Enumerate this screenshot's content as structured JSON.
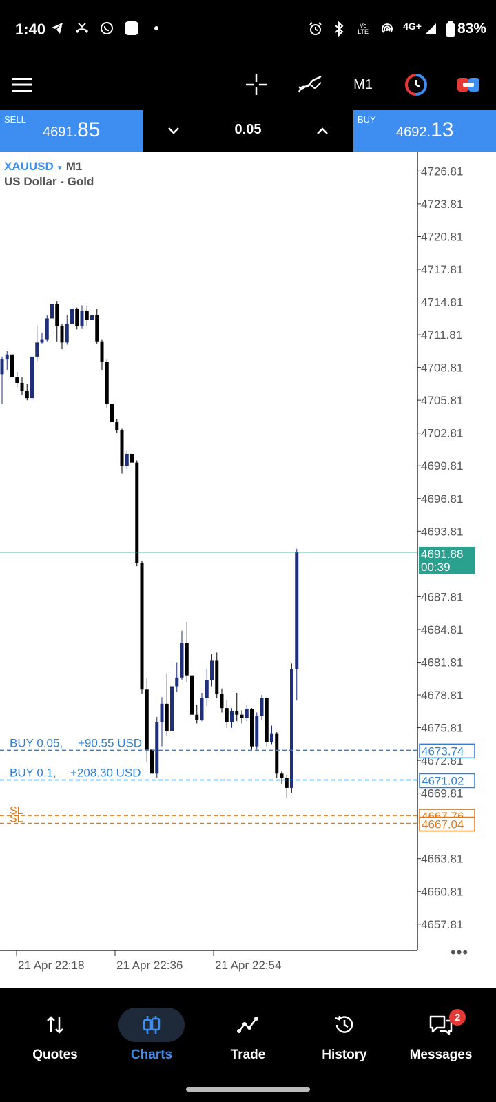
{
  "status_bar": {
    "time": "1:40",
    "battery": "83%",
    "network": "4G+",
    "volte": "Vo LTE"
  },
  "toolbar": {
    "timeframe": "M1"
  },
  "trade_panel": {
    "sell_label": "SELL",
    "sell_price_small": "4691.",
    "sell_price_big": "85",
    "buy_label": "BUY",
    "buy_price_small": "4692.",
    "buy_price_big": "13",
    "volume": "0.05"
  },
  "chart": {
    "symbol": "XAUUSD",
    "timeframe": "M1",
    "description": "US Dollar - Gold",
    "y_ticks": [
      "4726.81",
      "4723.81",
      "4720.81",
      "4717.81",
      "4714.81",
      "4711.81",
      "4708.81",
      "4705.81",
      "4702.81",
      "4699.81",
      "4696.81",
      "4693.81",
      "4687.81",
      "4684.81",
      "4681.81",
      "4678.81",
      "4675.81",
      "4672.81",
      "4669.81",
      "4663.81",
      "4660.81",
      "4657.81"
    ],
    "current_price": "4691.88",
    "countdown": "00:39",
    "x_ticks": [
      "21 Apr 22:18",
      "21 Apr 22:36",
      "21 Apr 22:54"
    ],
    "positions": [
      {
        "label": "BUY 0.05,",
        "profit": "+90.55 USD",
        "price": "4673.74",
        "price_value": 4673.74
      },
      {
        "label": "BUY 0.1,",
        "profit": "+208.30 USD",
        "price": "4671.02",
        "price_value": 4671.02
      }
    ],
    "stop_losses": [
      {
        "label": "SL",
        "price": "4667.76",
        "price_value": 4667.76
      },
      {
        "label": "SL",
        "price": "4667.04",
        "price_value": 4667.04
      }
    ],
    "colors": {
      "bull": "#1f2f7a",
      "bear": "#000000",
      "position_line": "#2f7fd6",
      "sl_line": "#e07a1c",
      "price_line": "#2aa18f",
      "price_tag_bg": "#2aa18f"
    }
  },
  "chart_data": {
    "type": "candlestick",
    "symbol": "XAUUSD",
    "timeframe": "M1",
    "ylim": [
      4655.4,
      4728.6
    ],
    "candles": [
      {
        "o": 4708.2,
        "h": 4709.8,
        "l": 4705.5,
        "c": 4709.6
      },
      {
        "o": 4709.6,
        "h": 4710.3,
        "l": 4708.6,
        "c": 4710.0
      },
      {
        "o": 4710.0,
        "h": 4710.1,
        "l": 4707.5,
        "c": 4707.9
      },
      {
        "o": 4707.9,
        "h": 4708.4,
        "l": 4707.0,
        "c": 4707.4
      },
      {
        "o": 4707.4,
        "h": 4707.9,
        "l": 4706.3,
        "c": 4706.7
      },
      {
        "o": 4706.7,
        "h": 4707.3,
        "l": 4705.8,
        "c": 4706.0
      },
      {
        "o": 4706.0,
        "h": 4710.1,
        "l": 4705.7,
        "c": 4709.8
      },
      {
        "o": 4709.8,
        "h": 4712.6,
        "l": 4709.4,
        "c": 4711.1
      },
      {
        "o": 4711.1,
        "h": 4712.0,
        "l": 4711.0,
        "c": 4711.4
      },
      {
        "o": 4711.4,
        "h": 4713.6,
        "l": 4711.2,
        "c": 4713.3
      },
      {
        "o": 4713.3,
        "h": 4715.1,
        "l": 4712.0,
        "c": 4714.6
      },
      {
        "o": 4714.6,
        "h": 4714.9,
        "l": 4711.2,
        "c": 4712.6
      },
      {
        "o": 4712.6,
        "h": 4712.8,
        "l": 4710.5,
        "c": 4711.1
      },
      {
        "o": 4711.1,
        "h": 4713.6,
        "l": 4710.9,
        "c": 4712.8
      },
      {
        "o": 4712.8,
        "h": 4714.6,
        "l": 4712.6,
        "c": 4714.2
      },
      {
        "o": 4714.2,
        "h": 4714.3,
        "l": 4712.3,
        "c": 4712.6
      },
      {
        "o": 4712.6,
        "h": 4714.5,
        "l": 4712.4,
        "c": 4714.0
      },
      {
        "o": 4714.0,
        "h": 4714.4,
        "l": 4712.6,
        "c": 4713.2
      },
      {
        "o": 4713.2,
        "h": 4713.9,
        "l": 4712.7,
        "c": 4713.6
      },
      {
        "o": 4713.6,
        "h": 4714.2,
        "l": 4711.0,
        "c": 4711.2
      },
      {
        "o": 4711.2,
        "h": 4711.4,
        "l": 4708.6,
        "c": 4709.3
      },
      {
        "o": 4709.3,
        "h": 4709.6,
        "l": 4705.1,
        "c": 4705.5
      },
      {
        "o": 4705.5,
        "h": 4705.9,
        "l": 4703.2,
        "c": 4703.8
      },
      {
        "o": 4703.8,
        "h": 4704.1,
        "l": 4702.8,
        "c": 4703.1
      },
      {
        "o": 4703.1,
        "h": 4703.2,
        "l": 4699.1,
        "c": 4699.8
      },
      {
        "o": 4699.8,
        "h": 4701.2,
        "l": 4699.5,
        "c": 4700.9
      },
      {
        "o": 4700.9,
        "h": 4701.2,
        "l": 4699.6,
        "c": 4700.1
      },
      {
        "o": 4700.1,
        "h": 4700.3,
        "l": 4690.6,
        "c": 4690.9
      },
      {
        "o": 4690.9,
        "h": 4691.1,
        "l": 4678.9,
        "c": 4679.3
      },
      {
        "o": 4679.3,
        "h": 4680.3,
        "l": 4672.7,
        "c": 4673.8
      },
      {
        "o": 4673.8,
        "h": 4674.2,
        "l": 4667.4,
        "c": 4671.6
      },
      {
        "o": 4671.6,
        "h": 4676.8,
        "l": 4671.2,
        "c": 4676.3
      },
      {
        "o": 4676.3,
        "h": 4678.6,
        "l": 4674.1,
        "c": 4678.0
      },
      {
        "o": 4678.0,
        "h": 4680.8,
        "l": 4675.1,
        "c": 4675.5
      },
      {
        "o": 4675.5,
        "h": 4681.7,
        "l": 4675.2,
        "c": 4679.6
      },
      {
        "o": 4679.6,
        "h": 4681.8,
        "l": 4679.1,
        "c": 4680.4
      },
      {
        "o": 4680.4,
        "h": 4684.7,
        "l": 4680.2,
        "c": 4683.6
      },
      {
        "o": 4683.6,
        "h": 4685.5,
        "l": 4680.0,
        "c": 4680.6
      },
      {
        "o": 4680.6,
        "h": 4681.2,
        "l": 4676.6,
        "c": 4677.0
      },
      {
        "o": 4677.0,
        "h": 4677.9,
        "l": 4676.2,
        "c": 4676.5
      },
      {
        "o": 4676.5,
        "h": 4679.0,
        "l": 4676.4,
        "c": 4678.5
      },
      {
        "o": 4678.5,
        "h": 4681.2,
        "l": 4677.8,
        "c": 4680.2
      },
      {
        "o": 4680.2,
        "h": 4682.6,
        "l": 4679.6,
        "c": 4682.0
      },
      {
        "o": 4682.0,
        "h": 4682.7,
        "l": 4678.5,
        "c": 4678.9
      },
      {
        "o": 4678.9,
        "h": 4679.4,
        "l": 4677.2,
        "c": 4677.6
      },
      {
        "o": 4677.6,
        "h": 4678.3,
        "l": 4675.8,
        "c": 4676.3
      },
      {
        "o": 4676.3,
        "h": 4677.6,
        "l": 4675.8,
        "c": 4677.3
      },
      {
        "o": 4677.3,
        "h": 4679.0,
        "l": 4676.4,
        "c": 4677.0
      },
      {
        "o": 4677.0,
        "h": 4677.4,
        "l": 4676.2,
        "c": 4676.7
      },
      {
        "o": 4676.7,
        "h": 4677.9,
        "l": 4676.4,
        "c": 4677.5
      },
      {
        "o": 4677.5,
        "h": 4677.6,
        "l": 4673.8,
        "c": 4674.1
      },
      {
        "o": 4674.1,
        "h": 4677.2,
        "l": 4673.8,
        "c": 4676.9
      },
      {
        "o": 4676.9,
        "h": 4678.8,
        "l": 4676.5,
        "c": 4678.5
      },
      {
        "o": 4678.5,
        "h": 4678.6,
        "l": 4674.1,
        "c": 4674.5
      },
      {
        "o": 4674.5,
        "h": 4676.0,
        "l": 4674.3,
        "c": 4675.3
      },
      {
        "o": 4675.3,
        "h": 4675.4,
        "l": 4671.2,
        "c": 4671.6
      },
      {
        "o": 4671.6,
        "h": 4671.8,
        "l": 4670.6,
        "c": 4671.2
      },
      {
        "o": 4671.2,
        "h": 4671.5,
        "l": 4669.4,
        "c": 4670.3
      },
      {
        "o": 4670.3,
        "h": 4681.7,
        "l": 4669.8,
        "c": 4681.2
      },
      {
        "o": 4681.2,
        "h": 4692.2,
        "l": 4678.3,
        "c": 4691.9
      }
    ]
  },
  "nav": {
    "items": [
      {
        "label": "Quotes"
      },
      {
        "label": "Charts"
      },
      {
        "label": "Trade"
      },
      {
        "label": "History"
      },
      {
        "label": "Messages"
      }
    ],
    "messages_badge": "2"
  }
}
